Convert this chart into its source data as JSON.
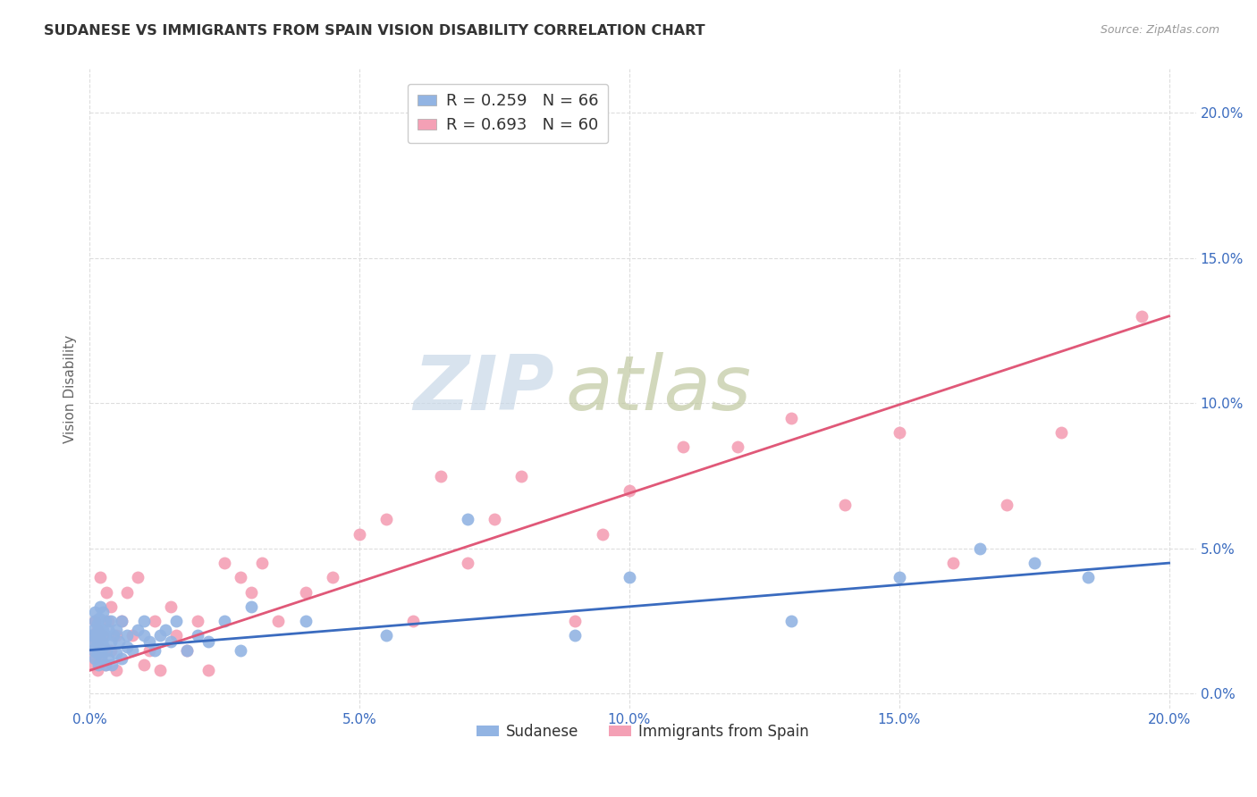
{
  "title": "SUDANESE VS IMMIGRANTS FROM SPAIN VISION DISABILITY CORRELATION CHART",
  "source": "Source: ZipAtlas.com",
  "ylabel": "Vision Disability",
  "xlim": [
    0.0,
    0.205
  ],
  "ylim": [
    -0.005,
    0.215
  ],
  "yticks": [
    0.0,
    0.05,
    0.1,
    0.15,
    0.2
  ],
  "xticks": [
    0.0,
    0.05,
    0.1,
    0.15,
    0.2
  ],
  "ytick_labels": [
    "0.0%",
    "5.0%",
    "10.0%",
    "15.0%",
    "20.0%"
  ],
  "xtick_labels": [
    "0.0%",
    "5.0%",
    "10.0%",
    "15.0%",
    "20.0%"
  ],
  "sudanese_R": 0.259,
  "sudanese_N": 66,
  "spain_R": 0.693,
  "spain_N": 60,
  "sudanese_color": "#92b4e3",
  "spain_color": "#f4a0b5",
  "sudanese_line_color": "#3a6bbf",
  "spain_line_color": "#e05878",
  "background_color": "#ffffff",
  "grid_color": "#dddddd",
  "watermark_zip": "ZIP",
  "watermark_atlas": "atlas",
  "watermark_color_zip": "#c8d8e8",
  "watermark_color_atlas": "#c0c8a0",
  "sudanese_x": [
    0.0003,
    0.0005,
    0.0007,
    0.0008,
    0.0009,
    0.001,
    0.001,
    0.0012,
    0.0013,
    0.0014,
    0.0015,
    0.0015,
    0.0016,
    0.0017,
    0.0018,
    0.002,
    0.002,
    0.002,
    0.0022,
    0.0023,
    0.0025,
    0.0025,
    0.0027,
    0.003,
    0.003,
    0.003,
    0.0032,
    0.0035,
    0.0035,
    0.004,
    0.004,
    0.0042,
    0.0045,
    0.005,
    0.005,
    0.0055,
    0.006,
    0.006,
    0.007,
    0.007,
    0.008,
    0.009,
    0.01,
    0.01,
    0.011,
    0.012,
    0.013,
    0.014,
    0.015,
    0.016,
    0.018,
    0.02,
    0.022,
    0.025,
    0.028,
    0.03,
    0.04,
    0.055,
    0.07,
    0.09,
    0.1,
    0.13,
    0.15,
    0.165,
    0.175,
    0.185
  ],
  "sudanese_y": [
    0.02,
    0.018,
    0.022,
    0.015,
    0.025,
    0.012,
    0.028,
    0.016,
    0.02,
    0.014,
    0.018,
    0.024,
    0.01,
    0.022,
    0.026,
    0.015,
    0.02,
    0.03,
    0.013,
    0.018,
    0.022,
    0.028,
    0.016,
    0.01,
    0.02,
    0.025,
    0.015,
    0.012,
    0.022,
    0.018,
    0.025,
    0.01,
    0.02,
    0.014,
    0.022,
    0.018,
    0.012,
    0.025,
    0.016,
    0.02,
    0.015,
    0.022,
    0.02,
    0.025,
    0.018,
    0.015,
    0.02,
    0.022,
    0.018,
    0.025,
    0.015,
    0.02,
    0.018,
    0.025,
    0.015,
    0.03,
    0.025,
    0.02,
    0.06,
    0.02,
    0.04,
    0.025,
    0.04,
    0.05,
    0.045,
    0.04
  ],
  "spain_x": [
    0.0003,
    0.0005,
    0.0007,
    0.0009,
    0.001,
    0.0012,
    0.0014,
    0.0015,
    0.0017,
    0.002,
    0.002,
    0.0022,
    0.0025,
    0.003,
    0.003,
    0.0032,
    0.0035,
    0.004,
    0.004,
    0.005,
    0.005,
    0.006,
    0.007,
    0.008,
    0.009,
    0.01,
    0.011,
    0.012,
    0.013,
    0.015,
    0.016,
    0.018,
    0.02,
    0.022,
    0.025,
    0.028,
    0.03,
    0.032,
    0.035,
    0.04,
    0.045,
    0.05,
    0.055,
    0.06,
    0.065,
    0.07,
    0.075,
    0.08,
    0.09,
    0.095,
    0.1,
    0.11,
    0.12,
    0.13,
    0.14,
    0.15,
    0.16,
    0.17,
    0.18,
    0.195
  ],
  "spain_y": [
    0.02,
    0.015,
    0.01,
    0.025,
    0.012,
    0.018,
    0.008,
    0.022,
    0.016,
    0.015,
    0.04,
    0.012,
    0.02,
    0.01,
    0.015,
    0.035,
    0.025,
    0.03,
    0.015,
    0.02,
    0.008,
    0.025,
    0.035,
    0.02,
    0.04,
    0.01,
    0.015,
    0.025,
    0.008,
    0.03,
    0.02,
    0.015,
    0.025,
    0.008,
    0.045,
    0.04,
    0.035,
    0.045,
    0.025,
    0.035,
    0.04,
    0.055,
    0.06,
    0.025,
    0.075,
    0.045,
    0.06,
    0.075,
    0.025,
    0.055,
    0.07,
    0.085,
    0.085,
    0.095,
    0.065,
    0.09,
    0.045,
    0.065,
    0.09,
    0.13
  ]
}
